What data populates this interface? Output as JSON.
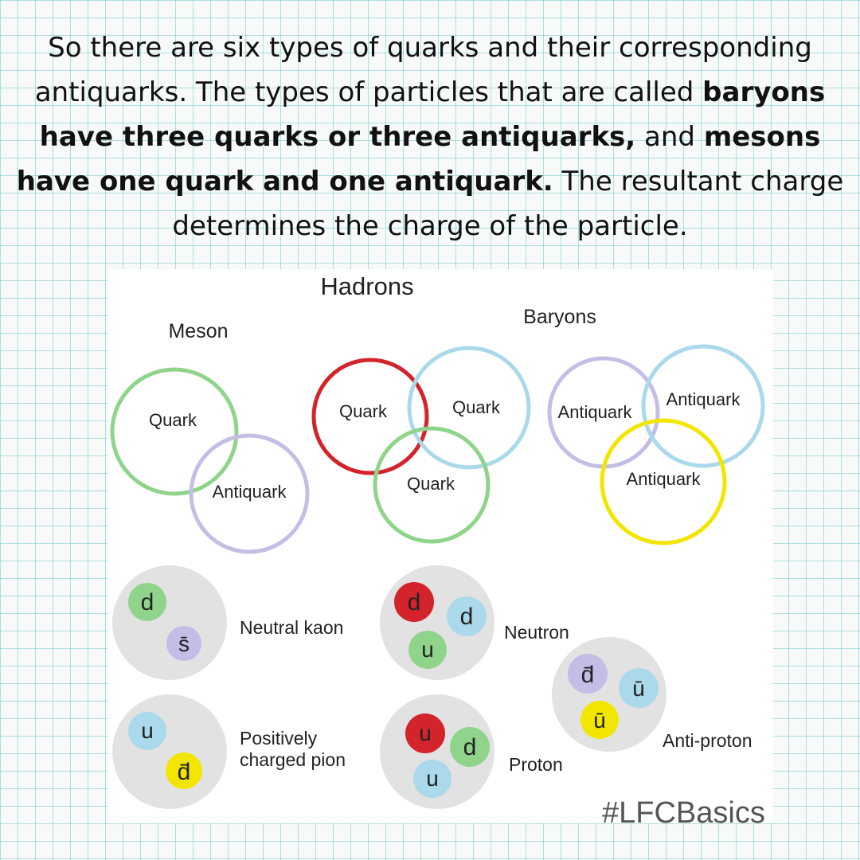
{
  "intro": {
    "t1": "So there are six types of quarks and their corresponding antiquarks. The types of particles that are called ",
    "b1": "baryons have three quarks or three antiquarks,",
    "t2": " and ",
    "b2": "mesons have one quark and one antiquark.",
    "t3": " The resultant charge determines the charge of the particle."
  },
  "diagram": {
    "title": "Hadrons",
    "meson_label": "Meson",
    "baryons_label": "Baryons",
    "meson_circles": {
      "quark": "Quark",
      "antiquark": "Antiquark"
    },
    "baryon_circles": {
      "q1": "Quark",
      "q2": "Quark",
      "q3": "Quark"
    },
    "antibaryon_circles": {
      "a1": "Antiquark",
      "a2": "Antiquark",
      "a3": "Antiquark"
    },
    "examples": {
      "neutral_kaon": {
        "label": "Neutral kaon",
        "q1": "d",
        "q2": "s̄"
      },
      "pion": {
        "label_line1": "Positively",
        "label_line2": "charged pion",
        "q1": "u",
        "q2": "d̄"
      },
      "neutron": {
        "label": "Neutron",
        "q1": "d",
        "q2": "d",
        "q3": "u"
      },
      "proton": {
        "label": "Proton",
        "q1": "u",
        "q2": "d",
        "q3": "u"
      },
      "antiproton": {
        "label": "Anti-proton",
        "q1": "d̄",
        "q2": "ū",
        "q3": "ū"
      }
    },
    "colors": {
      "green": "#8fd48a",
      "lavender": "#c4bde6",
      "red": "#d4242b",
      "blue": "#a9d9ea",
      "yellow": "#f2e600",
      "grey": "#e2e2e2"
    }
  },
  "hashtag": "#LFCBasics"
}
